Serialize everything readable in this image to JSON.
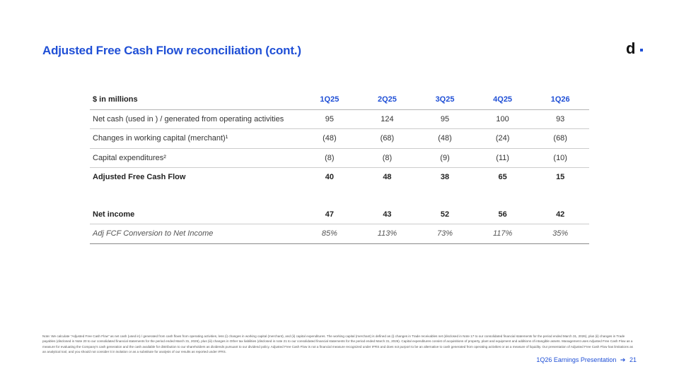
{
  "title": "Adjusted Free Cash Flow reconciliation (cont.)",
  "logo": {
    "letter": "d"
  },
  "table": {
    "header": [
      "$ in millions",
      "1Q25",
      "2Q25",
      "3Q25",
      "4Q25",
      "1Q26"
    ],
    "rows": [
      {
        "label": "Net cash (used in ) / generated from operating activities",
        "values": [
          "95",
          "124",
          "95",
          "100",
          "93"
        ]
      },
      {
        "label": "Changes in working capital (merchant)¹",
        "values": [
          "(48)",
          "(68)",
          "(48)",
          "(24)",
          "(68)"
        ]
      },
      {
        "label": "Capital expenditures²",
        "values": [
          "(8)",
          "(8)",
          "(9)",
          "(11)",
          "(10)"
        ]
      },
      {
        "label": "Adjusted Free Cash Flow",
        "values": [
          "40",
          "48",
          "38",
          "65",
          "15"
        ]
      },
      {
        "label": "Net income",
        "values": [
          "47",
          "43",
          "52",
          "56",
          "42"
        ]
      },
      {
        "label": "Adj FCF Conversion to Net Income",
        "values": [
          "85%",
          "113%",
          "73%",
          "117%",
          "35%"
        ]
      }
    ]
  },
  "note": "Note: We calculate \"Adjusted Free Cash Flow\" as net cash (used in) / generated from cash flows from operating activities, less (i) changes in working capital (merchant), and (ii) capital expenditures. The working capital (merchant) is defined as (i) changes in Trade receivables net (disclosed in Note 17 to our consolidated financial statements for the period ended March 31, 2026), plus (ii) changes in Trade payables (disclosed in Note 20 to our consolidated financial statements for the period ended March 31, 2026), plus (iii) changes in Other tax liabilities (disclosed in note 21 to our consolidated financial statements for the period ended March 31, 2026). Capital expenditures consist of acquisitions of property, plant and equipment and additions of intangible assets. Management uses Adjusted Free Cash Flow as a measure for evaluating the Company's cash generation and the cash available for distribution to our shareholders as dividends pursuant to our dividend policy. Adjusted Free Cash Flow is not a financial measure recognized under IFRS and does not purport to be an alternative to cash generated from operating activities or as a measure of liquidity. Our presentation of Adjusted Free Cash Flow has limitations as an analytical tool, and you should not consider it in isolation or as a substitute for analysis of our results as reported under IFRS.",
  "footer": {
    "label": "1Q26 Earnings Presentation",
    "arrow": "➔",
    "page": "21"
  },
  "colors": {
    "accent": "#1f4fd6",
    "text": "#333333"
  }
}
